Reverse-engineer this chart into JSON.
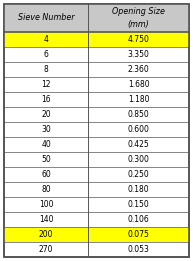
{
  "headers_line1": [
    "Sieve Number",
    "Opening Size"
  ],
  "headers_line2": [
    "",
    "(mm)"
  ],
  "rows": [
    [
      "4",
      "4.750",
      true
    ],
    [
      "6",
      "3.350",
      false
    ],
    [
      "8",
      "2.360",
      false
    ],
    [
      "12",
      "1.680",
      false
    ],
    [
      "16",
      "1.180",
      false
    ],
    [
      "20",
      "0.850",
      false
    ],
    [
      "30",
      "0.600",
      false
    ],
    [
      "40",
      "0.425",
      false
    ],
    [
      "50",
      "0.300",
      false
    ],
    [
      "60",
      "0.250",
      false
    ],
    [
      "80",
      "0.180",
      false
    ],
    [
      "100",
      "0.150",
      false
    ],
    [
      "140",
      "0.106",
      false
    ],
    [
      "200",
      "0.075",
      true
    ],
    [
      "270",
      "0.053",
      false
    ]
  ],
  "highlight_color": "#FFFF00",
  "header_bg": "#C8C8C8",
  "border_color": "#555555",
  "text_color": "#000000",
  "font_size": 5.5,
  "header_font_size": 5.8,
  "col_split": 0.455,
  "fig_width": 1.93,
  "fig_height": 2.61,
  "dpi": 100
}
